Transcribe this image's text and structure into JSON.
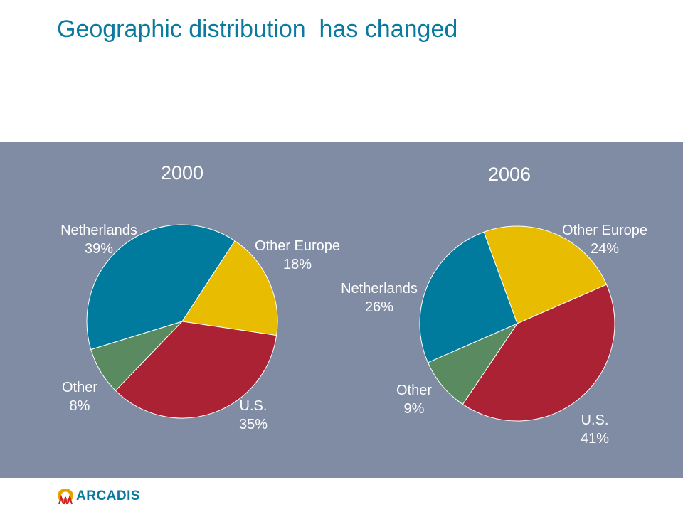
{
  "title": "Geographic distribution  has changed",
  "logo": {
    "text": "ARCADIS"
  },
  "colors": {
    "Netherlands": "#007b9e",
    "Other Europe": "#e8bc00",
    "U.S.": "#aa2233",
    "Other": "#5a8a60",
    "panel": "#7f8ca3",
    "title": "#0a7a9e"
  },
  "chart_data": [
    {
      "type": "pie",
      "title": "2000",
      "slices": [
        {
          "label": "Netherlands",
          "value": 39,
          "display": "39%"
        },
        {
          "label": "Other Europe",
          "value": 18,
          "display": "18%"
        },
        {
          "label": "U.S.",
          "value": 35,
          "display": "35%"
        },
        {
          "label": "Other",
          "value": 8,
          "display": "8%"
        }
      ]
    },
    {
      "type": "pie",
      "title": "2006",
      "slices": [
        {
          "label": "Netherlands",
          "value": 26,
          "display": "26%"
        },
        {
          "label": "Other Europe",
          "value": 24,
          "display": "24%"
        },
        {
          "label": "U.S.",
          "value": 41,
          "display": "41%"
        },
        {
          "label": "Other",
          "value": 9,
          "display": "9%"
        }
      ]
    }
  ]
}
